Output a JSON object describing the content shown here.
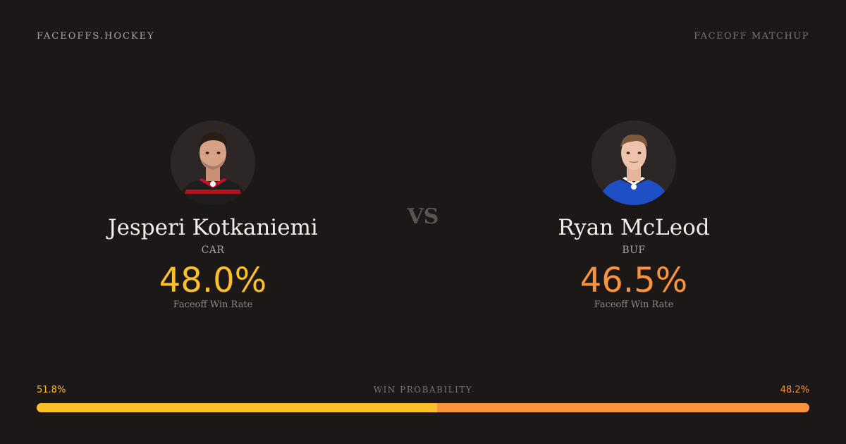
{
  "header": {
    "brand": "FACEOFFS.HOCKEY",
    "label": "FACEOFF MATCHUP"
  },
  "vs_label": "VS",
  "players": [
    {
      "name": "Jesperi Kotkaniemi",
      "team": "CAR",
      "win_rate": "48.0%",
      "win_rate_label": "Faceoff Win Rate",
      "color": "#fbbf2a",
      "jersey_color": "#1e1e1e"
    },
    {
      "name": "Ryan McLeod",
      "team": "BUF",
      "win_rate": "46.5%",
      "win_rate_label": "Faceoff Win Rate",
      "color": "#fb923c",
      "jersey_color": "#1f4fc4"
    }
  ],
  "win_probability": {
    "title": "WIN PROBABILITY",
    "left_label": "51.8%",
    "right_label": "48.2%",
    "left_value": 51.8,
    "right_value": 48.2
  }
}
